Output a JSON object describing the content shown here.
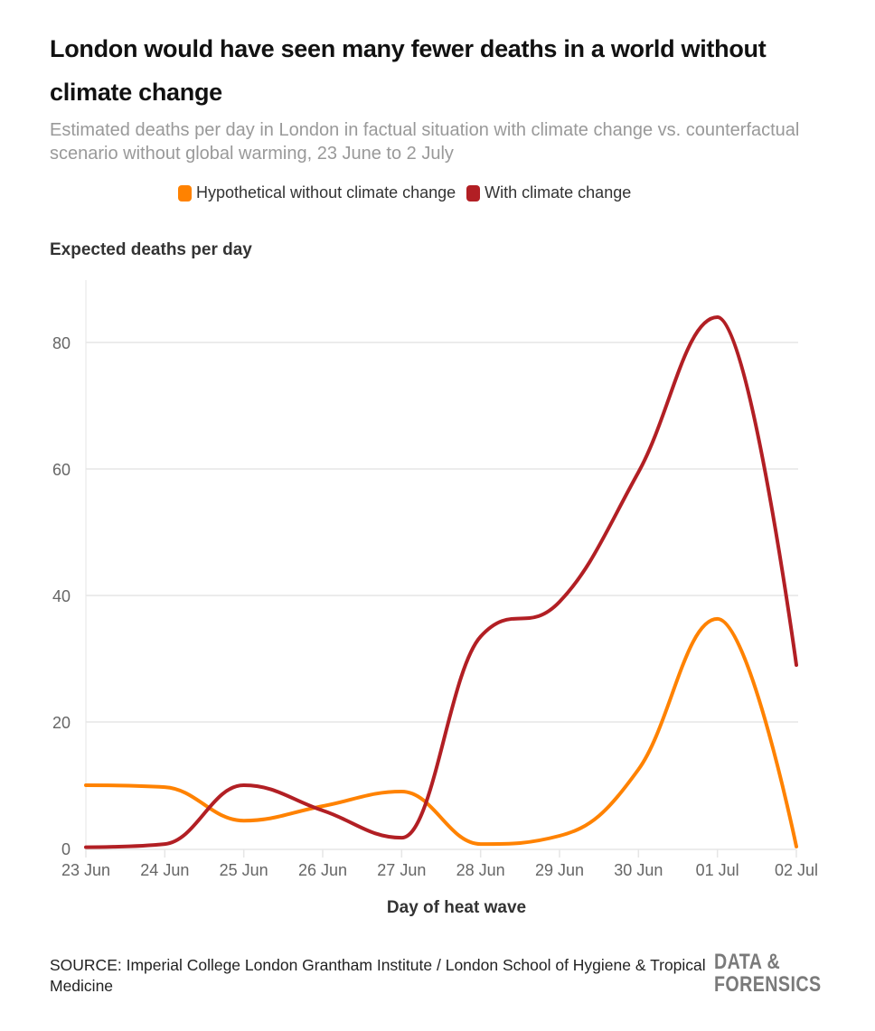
{
  "title": "London would have seen many fewer deaths in a world without climate change",
  "subtitle": "Estimated deaths per day in London in factual situation with climate change vs. counterfactual scenario without global warming, 23 June to 2 July",
  "source": "SOURCE: Imperial College London Grantham Institute / London School of Hygiene & Tropical Medicine",
  "logo": "DATA & FORENSICS",
  "chart_data": {
    "type": "line",
    "title": "London would have seen many fewer deaths in a world without climate change",
    "xlabel": "Day of heat wave",
    "ylabel": "Expected deaths per day",
    "categories": [
      "23 Jun",
      "24 Jun",
      "25 Jun",
      "26 Jun",
      "27 Jun",
      "28 Jun",
      "29 Jun",
      "30 Jun",
      "01 Jul",
      "02 Jul"
    ],
    "ylim": [
      0,
      90
    ],
    "yticks": [
      0,
      20,
      40,
      60,
      80
    ],
    "grid": true,
    "legend_position": "top-center",
    "series": [
      {
        "name": "Hypothetical without climate change",
        "color": "#ff8200",
        "values": [
          10,
          9.7,
          4.4,
          6.7,
          9,
          0.7,
          2,
          12.5,
          36.3,
          0.3
        ]
      },
      {
        "name": "With climate change",
        "color": "#b21f24",
        "values": [
          0.2,
          0.7,
          10,
          6,
          1.7,
          33.5,
          39,
          59.5,
          84,
          29
        ]
      }
    ]
  }
}
